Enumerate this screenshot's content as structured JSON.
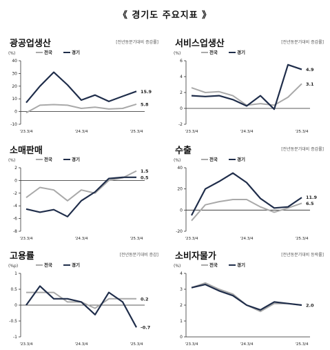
{
  "page": {
    "title": "《 경기도 주요지표 》"
  },
  "colors": {
    "nation": "#a9a9a9",
    "gyeonggi": "#1f2d4a"
  },
  "chart_data": [
    {
      "type": "line",
      "title": "광공업생산",
      "note": "[전년동분기대비 증감률]",
      "ylabel": "(%)",
      "ylim": [
        -10,
        40
      ],
      "yticks": [
        -10,
        0,
        10,
        20,
        30,
        40
      ],
      "x_tick_labels": [
        "'23.3/4",
        "'24.3/4",
        "'25.3/4"
      ],
      "x_tick_positions": [
        0,
        4,
        8
      ],
      "series": [
        {
          "name": "전국",
          "values": [
            -1,
            5,
            5.5,
            5,
            2.5,
            3.5,
            2,
            2.5,
            5.8
          ],
          "end_label": "5.8"
        },
        {
          "name": "경기",
          "values": [
            7,
            20,
            31,
            21,
            9,
            13,
            8,
            12,
            15.9
          ],
          "end_label": "15.9"
        }
      ]
    },
    {
      "type": "line",
      "title": "서비스업생산",
      "note": "[전년동분기대비 증감률]",
      "ylabel": "(%)",
      "ylim": [
        -2,
        6
      ],
      "yticks": [
        -2,
        0,
        2,
        4,
        6
      ],
      "x_tick_labels": [
        "'23.3/4",
        "'24.3/4",
        "'25.3/4"
      ],
      "x_tick_positions": [
        0,
        4,
        8
      ],
      "series": [
        {
          "name": "전국",
          "values": [
            2.6,
            2.0,
            2.1,
            1.6,
            0.4,
            0.6,
            0.4,
            1.4,
            3.1
          ],
          "end_label": "3.1"
        },
        {
          "name": "경기",
          "values": [
            1.6,
            1.5,
            1.6,
            1.1,
            0.3,
            1.6,
            -0.1,
            5.5,
            4.9
          ],
          "end_label": "4.9"
        }
      ]
    },
    {
      "type": "line",
      "title": "소매판매",
      "note": "",
      "ylabel": "(%)",
      "ylim": [
        -8,
        2
      ],
      "yticks": [
        -8,
        -6,
        -4,
        -2,
        0,
        2
      ],
      "x_tick_labels": [
        "'23.3/4",
        "'24.3/4",
        "'25.3/4"
      ],
      "x_tick_positions": [
        0,
        4,
        8
      ],
      "series": [
        {
          "name": "전국",
          "values": [
            -2.7,
            -1.1,
            -1.5,
            -3.2,
            -1.5,
            -2.0,
            0.0,
            0.4,
            1.5
          ],
          "end_label": "1.5"
        },
        {
          "name": "경기",
          "values": [
            -4.5,
            -5.0,
            -4.6,
            -5.7,
            -3.2,
            -1.8,
            0.3,
            0.5,
            0.5
          ],
          "end_label": "0.5"
        }
      ]
    },
    {
      "type": "line",
      "title": "수출",
      "note": "[전년동분기대비 증감률]",
      "ylabel": "(%)",
      "ylim": [
        -20,
        40
      ],
      "yticks": [
        -20,
        0,
        20,
        40
      ],
      "x_tick_labels": [
        "'23.3/4",
        "'24.3/4",
        "'25.3/4"
      ],
      "x_tick_positions": [
        0,
        4,
        8
      ],
      "series": [
        {
          "name": "전국",
          "values": [
            -10,
            5,
            8,
            10,
            10,
            3,
            -2,
            2,
            6.5
          ],
          "end_label": "6.5"
        },
        {
          "name": "경기",
          "values": [
            -5,
            20,
            27,
            35,
            26,
            11,
            2,
            3,
            11.9
          ],
          "end_label": "11.9"
        }
      ]
    },
    {
      "type": "line",
      "title": "고용률",
      "note": "[전년동분기대비 증감]",
      "ylabel": "(%p)",
      "ylim": [
        -1,
        1
      ],
      "yticks": [
        -1,
        -0.5,
        0,
        0.5,
        1
      ],
      "x_tick_labels": [
        "'23.3/4",
        "'24.3/4",
        "'25.3/4"
      ],
      "x_tick_positions": [
        0,
        4,
        8
      ],
      "series": [
        {
          "name": "전국",
          "values": [
            0.4,
            0.4,
            0.4,
            0.1,
            0.1,
            -0.1,
            0.2,
            0.2,
            0.2
          ],
          "end_label": "0.2"
        },
        {
          "name": "경기",
          "values": [
            0.0,
            0.6,
            0.2,
            0.2,
            0.1,
            -0.3,
            0.4,
            0.1,
            -0.7
          ],
          "end_label": "-0.7"
        }
      ]
    },
    {
      "type": "line",
      "title": "소비자물가",
      "note": "[전년동분기대비 등락률]",
      "ylabel": "(%)",
      "ylim": [
        0,
        4
      ],
      "yticks": [
        0,
        1,
        2,
        3,
        4
      ],
      "x_tick_labels": [
        "'23.3/4",
        "'24.3/4",
        "'25.3/4"
      ],
      "x_tick_positions": [
        0,
        4,
        8
      ],
      "series": [
        {
          "name": "전국",
          "values": [
            3.1,
            3.4,
            3.0,
            2.7,
            2.0,
            1.6,
            2.1,
            2.1,
            2.0
          ],
          "end_label": ""
        },
        {
          "name": "경기",
          "values": [
            3.1,
            3.3,
            2.9,
            2.6,
            2.0,
            1.7,
            2.2,
            2.1,
            2.0
          ],
          "end_label": "2.0"
        }
      ]
    }
  ]
}
